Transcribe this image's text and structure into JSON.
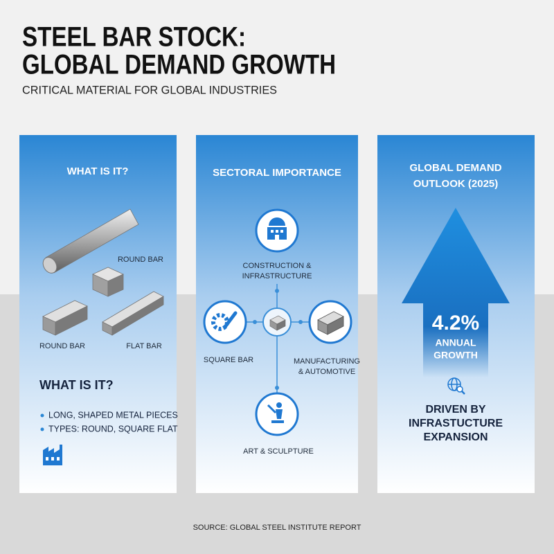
{
  "header": {
    "title": [
      "STEEL BAR STOCK:",
      "GLOBAL DEMAND GROWTH"
    ],
    "subtitle": "CRITICAL MATERIAL FOR GLOBAL INDUSTRIES"
  },
  "panels": [
    {
      "heading": [
        "WHAT IS IT?"
      ],
      "labels": [
        "ROUND BAR",
        "ROUND BAR",
        "FLAT BAR"
      ],
      "subheading": "WHAT IS IT?",
      "bullets": [
        "LONG, SHAPED METAL PIECES",
        "TYPES: ROUND, SQUARE FLAT"
      ]
    },
    {
      "heading": [
        "SECTORAL IMPORTANCE"
      ],
      "nodes": [
        {
          "label": [
            "CONSTRUCTION &",
            "INFRASTRUCTURE"
          ]
        },
        {
          "label": [
            "SQUARE BAR"
          ]
        },
        {
          "label": [
            "MANUFACTURING",
            "& AUTOMOTIVE"
          ]
        },
        {
          "label": [
            "ART & SCULPTURE"
          ]
        }
      ]
    },
    {
      "heading": [
        "GLOBAL DEMAND",
        "OUTLOOK (2025)"
      ],
      "figure": "4.2%",
      "figure_caption": [
        "ANNUAL",
        "GROWTH"
      ],
      "note": [
        "DRIVEN BY",
        "INFRASTUCTURE",
        "EXPANSION"
      ]
    }
  ],
  "footer": {
    "source": "SOURCE: GLOBAL STEEL INSTITUTE REPORT"
  }
}
